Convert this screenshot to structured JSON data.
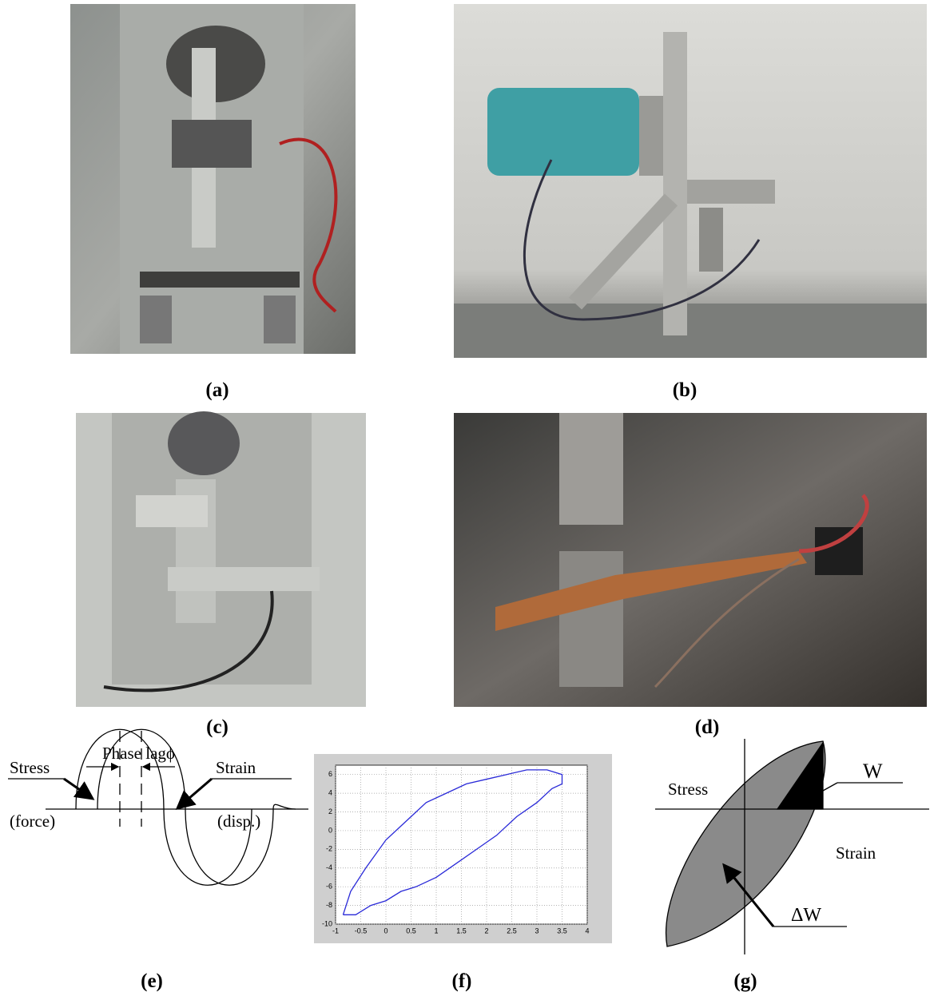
{
  "labels": [
    "(a)",
    "(b)",
    "(c)",
    "(d)",
    "(e)",
    "(f)",
    "(g)"
  ],
  "phase_diagram": {
    "phase_lag": "Phase lagϕ",
    "stress": "Stress",
    "stress_unit": "(force)",
    "strain": "Strain",
    "strain_unit": "(disp.)"
  },
  "energy_diagram": {
    "stress": "Stress",
    "w": "W",
    "strain": "Strain",
    "delta_w": "ΔW"
  },
  "chart_data": {
    "type": "line",
    "x": [
      -0.85,
      -0.6,
      -0.3,
      0,
      0.3,
      0.6,
      1,
      1.4,
      1.8,
      2.2,
      2.6,
      3,
      3.3,
      3.5,
      3.5,
      3.2,
      2.8,
      2.4,
      2,
      1.6,
      1.2,
      0.8,
      0.4,
      0,
      -0.4,
      -0.7,
      -0.85
    ],
    "series": [
      {
        "color": "#2a2ad8",
        "values": [
          -9,
          -9,
          -8,
          -7.5,
          -6.5,
          -6,
          -5,
          -3.5,
          -2,
          -0.5,
          1.5,
          3,
          4.5,
          5,
          6,
          6.5,
          6.5,
          6,
          5.5,
          5,
          4,
          3,
          1,
          -1,
          -4,
          -6.5,
          -9
        ]
      }
    ],
    "xlim": [
      -1,
      4
    ],
    "ylim": [
      -10,
      7
    ],
    "xticks": [
      -1,
      -0.5,
      0,
      0.5,
      1,
      1.5,
      2,
      2.5,
      3,
      3.5,
      4
    ],
    "yticks": [
      -10,
      -8,
      -6,
      -4,
      -2,
      0,
      2,
      4,
      6
    ],
    "grid": true
  }
}
